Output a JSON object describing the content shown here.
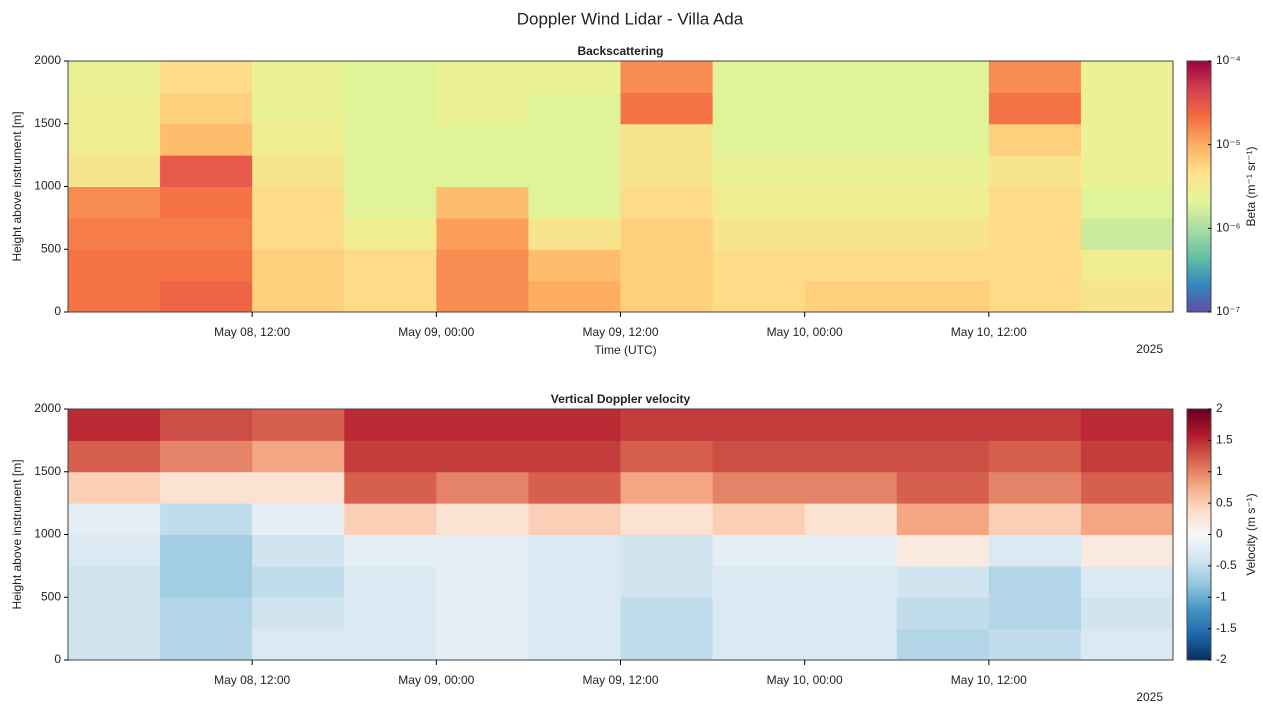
{
  "title": "Doppler Wind Lidar - Villa Ada",
  "chart_data": [
    {
      "type": "heatmap",
      "title": "Backscattering",
      "xlabel": "Time (UTC)",
      "ylabel": "Height above instrument [m]",
      "x_offset_label": "2025",
      "colorbar_label": "Beta (m⁻¹ sr⁻¹)",
      "color_scale": "log",
      "xlim": [
        "2025-05-08T00:00",
        "2025-05-11T00:00"
      ],
      "xticks": [
        {
          "value": "2025-05-08T12:00",
          "label": "May 08, 12:00"
        },
        {
          "value": "2025-05-09T00:00",
          "label": "May 09, 00:00"
        },
        {
          "value": "2025-05-09T12:00",
          "label": "May 09, 12:00"
        },
        {
          "value": "2025-05-10T00:00",
          "label": "May 10, 00:00"
        },
        {
          "value": "2025-05-10T12:00",
          "label": "May 10, 12:00"
        }
      ],
      "ylim": [
        0,
        2000
      ],
      "yticks": [
        0,
        500,
        1000,
        1500,
        2000
      ],
      "xbins": [
        "2025-05-08T00:00",
        "2025-05-08T06:00",
        "2025-05-08T12:00",
        "2025-05-08T18:00",
        "2025-05-09T00:00",
        "2025-05-09T06:00",
        "2025-05-09T12:00",
        "2025-05-09T18:00",
        "2025-05-10T00:00",
        "2025-05-10T06:00",
        "2025-05-10T12:00",
        "2025-05-10T18:00",
        "2025-05-11T00:00"
      ],
      "ybins": [
        0,
        250,
        500,
        750,
        1000,
        1250,
        1500,
        1750,
        2000
      ],
      "z": [
        [
          2e-05,
          2.5e-05,
          6e-06,
          5e-06,
          1.5e-05,
          1e-05,
          6e-06,
          5e-06,
          6e-06,
          6e-06,
          5e-06,
          4e-06
        ],
        [
          2e-05,
          2e-05,
          6e-06,
          5e-06,
          1.5e-05,
          8e-06,
          6e-06,
          5e-06,
          5e-06,
          5e-06,
          5e-06,
          3e-06
        ],
        [
          1.8e-05,
          1.8e-05,
          5e-06,
          3e-06,
          1.2e-05,
          4e-06,
          6e-06,
          4e-06,
          4e-06,
          4e-06,
          5e-06,
          1.5e-06
        ],
        [
          1.5e-05,
          2e-05,
          5e-06,
          2e-06,
          8e-06,
          2e-06,
          5e-06,
          3e-06,
          3e-06,
          3e-06,
          5e-06,
          2e-06
        ],
        [
          4e-06,
          3e-05,
          4e-06,
          2e-06,
          2e-06,
          2e-06,
          4e-06,
          2.5e-06,
          2.5e-06,
          2.5e-06,
          4e-06,
          2.5e-06
        ],
        [
          3e-06,
          8e-06,
          3e-06,
          2e-06,
          2e-06,
          2e-06,
          4e-06,
          2e-06,
          2e-06,
          2e-06,
          6e-06,
          2.5e-06
        ],
        [
          3e-06,
          6e-06,
          2.5e-06,
          2e-06,
          2.5e-06,
          2e-06,
          2e-05,
          2e-06,
          2e-06,
          2e-06,
          2e-05,
          2.5e-06
        ],
        [
          2.5e-06,
          5e-06,
          2.5e-06,
          2e-06,
          2.5e-06,
          2.5e-06,
          1.5e-05,
          2e-06,
          2e-06,
          2e-06,
          1.5e-05,
          2.5e-06
        ]
      ],
      "clim": [
        1e-07,
        0.0001
      ],
      "cticks": [
        {
          "value": 1e-07,
          "label": "10⁻⁷"
        },
        {
          "value": 1e-06,
          "label": "10⁻⁶"
        },
        {
          "value": 1e-05,
          "label": "10⁻⁵"
        },
        {
          "value": 0.0001,
          "label": "10⁻⁴"
        }
      ],
      "colormap": [
        "#5e4fa2",
        "#3288bd",
        "#66c2a5",
        "#abdda4",
        "#e6f598",
        "#fee08b",
        "#fdae61",
        "#f46d43",
        "#d53e4f",
        "#9e0142"
      ]
    },
    {
      "type": "heatmap",
      "title": "Vertical Doppler velocity",
      "ylabel": "Height above instrument [m]",
      "x_offset_label": "2025",
      "colorbar_label": "Velocity (m s⁻¹)",
      "color_scale": "linear",
      "xlim": [
        "2025-05-08T00:00",
        "2025-05-11T00:00"
      ],
      "xticks": [
        {
          "value": "2025-05-08T12:00",
          "label": "May 08, 12:00"
        },
        {
          "value": "2025-05-09T00:00",
          "label": "May 09, 00:00"
        },
        {
          "value": "2025-05-09T12:00",
          "label": "May 09, 12:00"
        },
        {
          "value": "2025-05-10T00:00",
          "label": "May 10, 00:00"
        },
        {
          "value": "2025-05-10T12:00",
          "label": "May 10, 12:00"
        }
      ],
      "ylim": [
        0,
        2000
      ],
      "yticks": [
        0,
        500,
        1000,
        1500,
        2000
      ],
      "xbins": [
        "2025-05-08T00:00",
        "2025-05-08T06:00",
        "2025-05-08T12:00",
        "2025-05-08T18:00",
        "2025-05-09T00:00",
        "2025-05-09T06:00",
        "2025-05-09T12:00",
        "2025-05-09T18:00",
        "2025-05-10T00:00",
        "2025-05-10T06:00",
        "2025-05-10T12:00",
        "2025-05-10T18:00",
        "2025-05-11T00:00"
      ],
      "ybins": [
        0,
        250,
        500,
        750,
        1000,
        1250,
        1500,
        1750,
        2000
      ],
      "z": [
        [
          -0.4,
          -0.6,
          -0.3,
          -0.3,
          -0.2,
          -0.3,
          -0.5,
          -0.3,
          -0.3,
          -0.6,
          -0.5,
          -0.3
        ],
        [
          -0.4,
          -0.6,
          -0.4,
          -0.3,
          -0.2,
          -0.3,
          -0.5,
          -0.3,
          -0.3,
          -0.5,
          -0.6,
          -0.4
        ],
        [
          -0.4,
          -0.7,
          -0.5,
          -0.3,
          -0.2,
          -0.3,
          -0.4,
          -0.3,
          -0.3,
          -0.4,
          -0.6,
          -0.3
        ],
        [
          -0.3,
          -0.7,
          -0.4,
          -0.2,
          -0.2,
          -0.3,
          -0.4,
          -0.2,
          -0.2,
          0.2,
          -0.3,
          0.2
        ],
        [
          -0.2,
          -0.5,
          -0.2,
          0.5,
          0.3,
          0.5,
          0.3,
          0.5,
          0.3,
          0.8,
          0.5,
          0.8
        ],
        [
          0.5,
          0.3,
          0.3,
          1.2,
          1.0,
          1.2,
          0.8,
          1.0,
          1.0,
          1.2,
          1.0,
          1.2
        ],
        [
          1.2,
          1.0,
          0.8,
          1.4,
          1.4,
          1.4,
          1.2,
          1.3,
          1.3,
          1.3,
          1.2,
          1.4
        ],
        [
          1.5,
          1.3,
          1.2,
          1.5,
          1.5,
          1.5,
          1.4,
          1.4,
          1.4,
          1.4,
          1.4,
          1.5
        ]
      ],
      "clim": [
        -2,
        2
      ],
      "cticks": [
        -2,
        -1.5,
        -1,
        -0.5,
        0,
        0.5,
        1,
        1.5,
        2
      ],
      "colormap": [
        "#053061",
        "#2166ac",
        "#4393c3",
        "#92c5de",
        "#d1e5f0",
        "#f7f7f7",
        "#fddbc7",
        "#f4a582",
        "#d6604d",
        "#b2182b",
        "#67001f"
      ]
    }
  ]
}
